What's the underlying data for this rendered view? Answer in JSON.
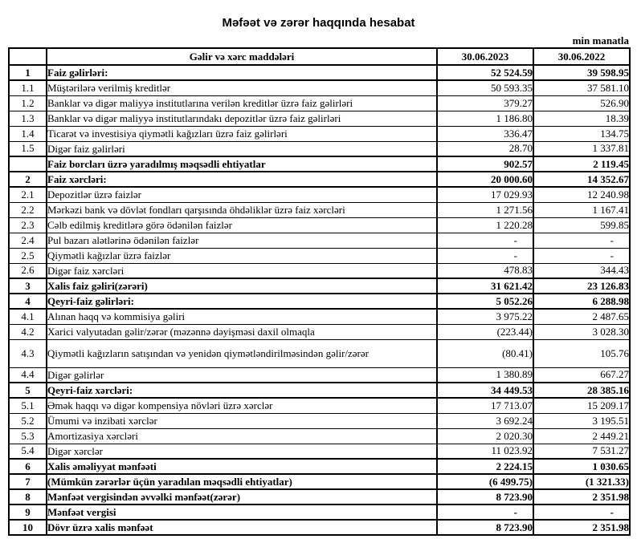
{
  "page": {
    "title": "Məfəət və zərər haqqında hesabat",
    "unit_note": "min manatla"
  },
  "table": {
    "headers": {
      "num": "",
      "label": "Gəlir və xərc maddələri",
      "col_2023": "30.06.2023",
      "col_2022": "30.06.2022"
    },
    "rows": [
      {
        "num": "1",
        "label": "Faiz gəlirləri:",
        "v2023": "52 524.59",
        "v2022": "39 598.95",
        "bold": true
      },
      {
        "num": "1.1",
        "label": "Müştərilərə verilmiş kreditlər",
        "v2023": "50 593.35",
        "v2022": "37 581.10"
      },
      {
        "num": "1.2",
        "label": "Banklar və digər maliyyə institutlarına verilən kreditlər üzrə faiz gəlirləri",
        "v2023": "379.27",
        "v2022": "526.90"
      },
      {
        "num": "1.3",
        "label": "Banklar və digər maliyyə institutlarındakı depozitlər üzrə faiz gəlirləri",
        "v2023": "1 186.80",
        "v2022": "18.39"
      },
      {
        "num": "1.4",
        "label": "Ticarət və investisiya qiymətli kağızları üzrə faiz gəlirləri",
        "v2023": "336.47",
        "v2022": "134.75"
      },
      {
        "num": "1.5",
        "label": "Digər faiz gəlirləri",
        "v2023": "28.70",
        "v2022": "1 337.81"
      },
      {
        "num": "",
        "label": "Faiz borcları üzrə yaradılmış məqsədli ehtiyatlar",
        "v2023": "902.57",
        "v2022": "2 119.45",
        "bold": true
      },
      {
        "num": "2",
        "label": "Faiz xərcləri:",
        "v2023": "20 000.60",
        "v2022": "14 352.67",
        "bold": true
      },
      {
        "num": "2.1",
        "label": "Depozitlər üzrə faizlər",
        "v2023": "17 029.93",
        "v2022": "12 240.98"
      },
      {
        "num": "2.2",
        "label": "Mərkəzi bank və dövlət fondları qarşısında öhdəliklər üzrə faiz xərcləri",
        "v2023": "1 271.56",
        "v2022": "1 167.41"
      },
      {
        "num": "2.3",
        "label": "Cəlb edilmiş kreditlərə görə ödənilən faizlər",
        "v2023": "1 220.28",
        "v2022": "599.85"
      },
      {
        "num": "2.4",
        "label": "Pul bazarı alətlərinə ödənilən faizlər",
        "v2023": "-",
        "v2022": "-"
      },
      {
        "num": "2.5",
        "label": "Qiymətli kağızlar üzrə faizlər",
        "v2023": "-",
        "v2022": "-"
      },
      {
        "num": "2.6",
        "label": "Digər faiz xərcləri",
        "v2023": "478.83",
        "v2022": "344.43"
      },
      {
        "num": "3",
        "label": "Xalis faiz gəliri(zərəri)",
        "v2023": "31 621.42",
        "v2022": "23 126.83",
        "bold": true
      },
      {
        "num": "4",
        "label": "Qeyri-faiz gəlirləri:",
        "v2023": "5 052.26",
        "v2022": "6 288.98",
        "bold": true
      },
      {
        "num": "4.1",
        "label": "Alınan haqq və kommisiya gəliri",
        "v2023": "3 975.22",
        "v2022": "2 487.65"
      },
      {
        "num": "4.2",
        "label": "Xarici valyutadan gəlir/zərər (məzənnə dəyişməsi daxil olmaqla",
        "v2023": "(223.44)",
        "v2022": "3 028.30"
      },
      {
        "num": "4.3",
        "label": "Qiymətli kağızların satışından və yenidən qiymətləndirilməsindən gəlir/zərər",
        "v2023": "(80.41)",
        "v2022": "105.76",
        "tall": true
      },
      {
        "num": "4.4",
        "label": "Digər gəlirlər",
        "v2023": "1 380.89",
        "v2022": "667.27"
      },
      {
        "num": "5",
        "label": "Qeyri-faiz xərcləri:",
        "v2023": "34 449.53",
        "v2022": "28 385.16",
        "bold": true
      },
      {
        "num": "5.1",
        "label": "Əmək haqqı və digər kompensiya növləri üzrə xərclər",
        "v2023": "17 713.07",
        "v2022": "15 209.17"
      },
      {
        "num": "5.2",
        "label": "Ümumi və inzibati xərclər",
        "v2023": "3 692.24",
        "v2022": "3 195.51"
      },
      {
        "num": "5.3",
        "label": "Amortizasiya xərcləri",
        "v2023": "2 020.30",
        "v2022": "2 449.21"
      },
      {
        "num": "5.4",
        "label": "Digər xərclər",
        "v2023": "11 023.92",
        "v2022": "7 531.27"
      },
      {
        "num": "6",
        "label": "Xalis əməliyyat mənfəəti",
        "v2023": "2 224.15",
        "v2022": "1 030.65",
        "bold": true
      },
      {
        "num": "7",
        "label": "(Mümkün zərərlər üçün yaradılan məqsədli ehtiyatlar)",
        "v2023": "(6 499.75)",
        "v2022": "(1 321.33)",
        "bold": true
      },
      {
        "num": "8",
        "label": "Mənfəət vergisindən əvvəlki mənfəət(zərər)",
        "v2023": "8 723.90",
        "v2022": "2 351.98",
        "bold": true
      },
      {
        "num": "9",
        "label": "Mənfəət vergisi",
        "v2023": "-",
        "v2022": "-",
        "bold": true
      },
      {
        "num": "10",
        "label": "Dövr üzrə xalis mənfəət",
        "v2023": "8 723.90",
        "v2022": "2 351.98",
        "bold": true
      }
    ]
  }
}
